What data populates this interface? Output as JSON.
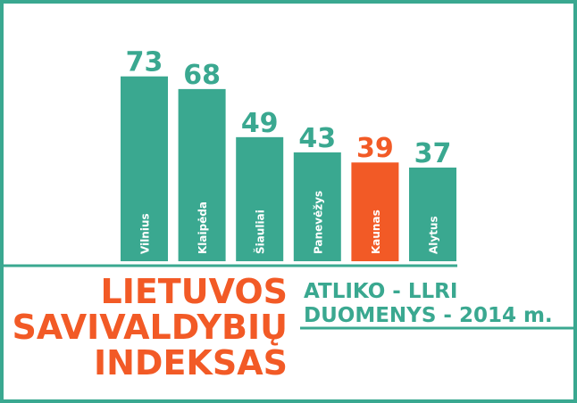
{
  "chart_data": {
    "type": "bar",
    "title": [
      "LIETUVOS",
      "SAVIVALDYBIŲ",
      "INDEKSAS"
    ],
    "subtitle": [
      "ATLIKO - LLRI",
      "DUOMENYS - 2014 m."
    ],
    "categories": [
      "Vilnius",
      "Klaipėda",
      "Šiauliai",
      "Panevėžys",
      "Kaunas",
      "Alytus"
    ],
    "values": [
      73,
      68,
      49,
      43,
      39,
      37
    ],
    "colors": [
      "#3aa890",
      "#3aa890",
      "#3aa890",
      "#3aa890",
      "#f25a26",
      "#3aa890"
    ]
  }
}
